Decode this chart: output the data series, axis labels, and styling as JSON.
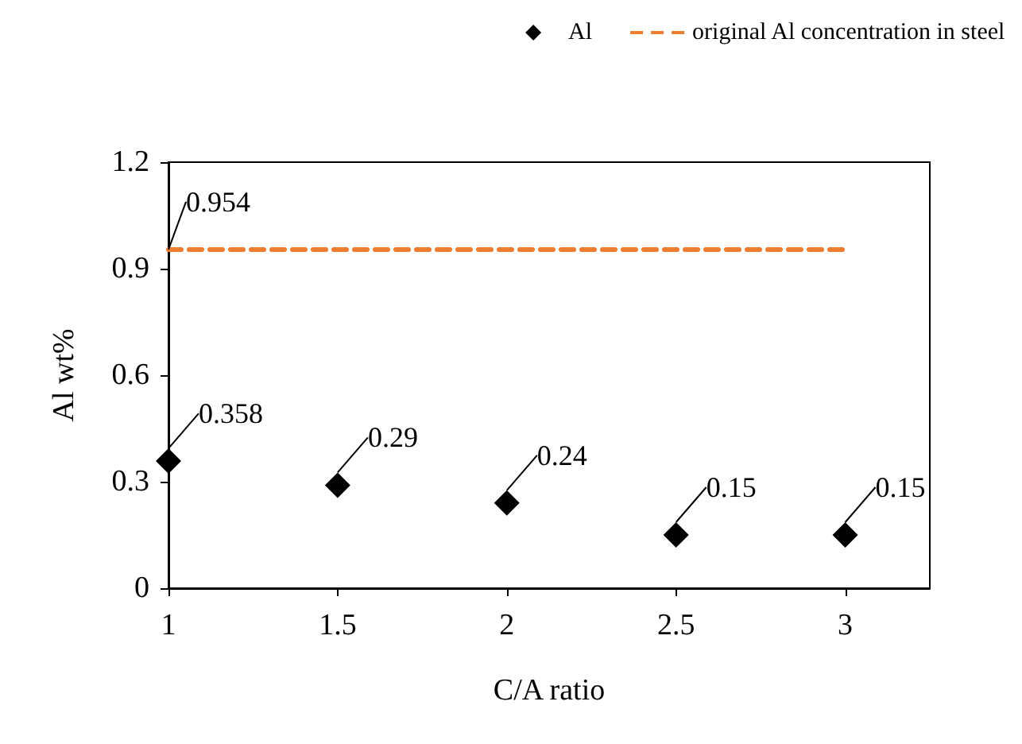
{
  "chart_data": {
    "type": "scatter",
    "xlabel": "C/A ratio",
    "ylabel": "Al wt%",
    "x": [
      1,
      1.5,
      2,
      2.5,
      3
    ],
    "series": [
      {
        "name": "Al",
        "color": "#000000",
        "values": [
          0.358,
          0.29,
          0.24,
          0.15,
          0.15
        ],
        "value_labels": [
          "0.358",
          "0.29",
          "0.24",
          "0.15",
          "0.15"
        ],
        "marker": "diamond"
      },
      {
        "name": "original Al concentration in steel",
        "type": "line",
        "color": "#ed7d31",
        "x": [
          1,
          3
        ],
        "values": [
          0.954,
          0.954
        ],
        "value_labels": [
          "0.954",
          null
        ],
        "line_style": "dashed",
        "marker": "none"
      }
    ],
    "xlim": [
      1,
      3.25
    ],
    "xticks": [
      1,
      1.5,
      2,
      2.5,
      3
    ],
    "ylim": [
      0,
      1.2
    ],
    "yticks": [
      0,
      0.3,
      0.6,
      0.9,
      1.2
    ],
    "grid": false,
    "legend": "top right"
  }
}
